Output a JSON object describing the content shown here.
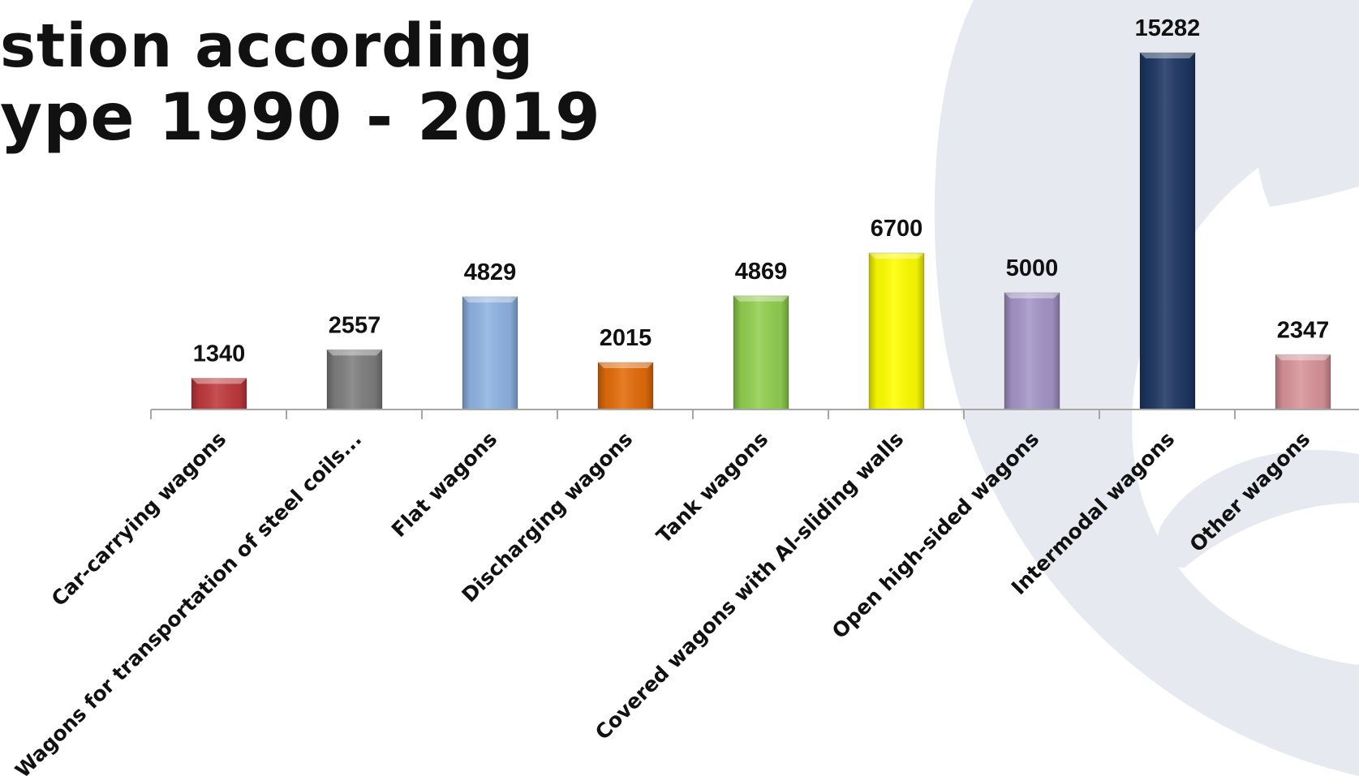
{
  "title": {
    "line1": "stion according",
    "line2": "ype 1990 - 2019"
  },
  "colors": {
    "axis": "#a6a6a6",
    "text": "#111111",
    "watermark": "#e7e9f0"
  },
  "chart_data": {
    "type": "bar",
    "categories": [
      "Car-carrying wagons",
      "Wagons for transportation of steel coils...",
      "Flat wagons",
      "Discharging wagons",
      "Tank wagons",
      "Covered wagons with Al-sliding walls",
      "Open high-sided wagons",
      "Intermodal wagons",
      "Other wagons"
    ],
    "values": [
      1340,
      2557,
      4829,
      2015,
      4869,
      6700,
      5000,
      15282,
      2347
    ],
    "value_labels": [
      "1340",
      "2557",
      "4829",
      "2015",
      "4869",
      "6700",
      "5000",
      "15282",
      "2347"
    ],
    "bar_colors": [
      "#c0393d",
      "#7f7f7f",
      "#8fb4e3",
      "#e46c0a",
      "#92d050",
      "#ffff00",
      "#a596c8",
      "#1f3864",
      "#d9959a"
    ],
    "ylim": [
      0,
      15282
    ],
    "grid": false,
    "legend": "none",
    "xlabel": "",
    "ylabel": ""
  }
}
